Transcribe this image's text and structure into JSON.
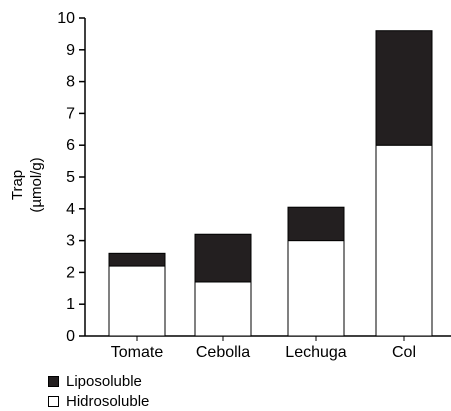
{
  "chart_data": {
    "type": "bar",
    "stacked": true,
    "categories": [
      "Tomate",
      "Cebolla",
      "Lechuga",
      "Col"
    ],
    "series": [
      {
        "name": "Hidrosoluble",
        "values": [
          2.2,
          1.7,
          3.0,
          6.0
        ],
        "color": "#ffffff"
      },
      {
        "name": "Liposoluble",
        "values": [
          0.4,
          1.5,
          1.05,
          3.6
        ],
        "color": "#231f20"
      }
    ],
    "ylabel_line1": "Trap",
    "ylabel_line2": "(µmol/g)",
    "ylim": [
      0,
      10
    ],
    "yticks": [
      "0",
      "1",
      "2",
      "3",
      "4",
      "5",
      "6",
      "7",
      "8",
      "9",
      "10"
    ],
    "grid": false,
    "legend_position": "bottom-left"
  },
  "legend": [
    {
      "label": "Liposoluble",
      "color": "#231f20"
    },
    {
      "label": "Hidrosoluble",
      "color": "#ffffff"
    }
  ]
}
